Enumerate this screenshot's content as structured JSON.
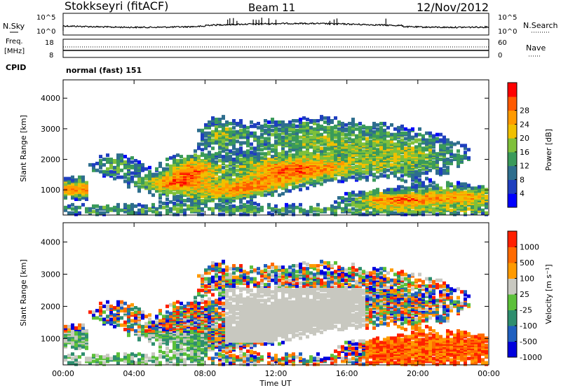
{
  "header": {
    "station": "Stokkseyri (fitACF)",
    "beam": "Beam 11",
    "date": "12/Nov/2012"
  },
  "left_labels": {
    "nsky": "N.Sky",
    "freq_line1": "Freq.",
    "freq_line2": "[MHz]",
    "cpid": "CPID"
  },
  "right_labels": {
    "nsearch": "N.Search",
    "nave": "Nave"
  },
  "noise_panel": {
    "left_ticks": [
      "10^5",
      "10^0"
    ],
    "right_ticks": [
      "10^5",
      "10^0"
    ]
  },
  "freq_panel": {
    "left_ticks": [
      "18",
      "8"
    ],
    "right_ticks": [
      "60",
      "0"
    ]
  },
  "cpid_text": "normal (fast) 151",
  "colors": {
    "power_scale": [
      "#0000ff",
      "#1f3fbf",
      "#2e6e8e",
      "#3a9a5a",
      "#7fc03a",
      "#f0c000",
      "#ff9a00",
      "#ff5a00",
      "#ff0000"
    ],
    "velocity_scale": [
      "#0000dd",
      "#1f5fbf",
      "#2e8e6e",
      "#5cc03a",
      "#c8c8c0",
      "#ff9a00",
      "#ff6a00",
      "#ff2000"
    ]
  },
  "chart_data": [
    {
      "type": "heatmap",
      "ylabel": "Slant Range [km]",
      "y_ticks": [
        1000,
        2000,
        3000,
        4000
      ],
      "ylim": [
        180,
        4600
      ],
      "colorbar_label": "Power [dB]",
      "colorbar_ticks": [
        4,
        8,
        12,
        16,
        20,
        24,
        28
      ],
      "colorbar_range": [
        0,
        32
      ]
    },
    {
      "type": "heatmap",
      "ylabel": "Slant Range [km]",
      "y_ticks": [
        1000,
        2000,
        3000,
        4000
      ],
      "ylim": [
        180,
        4600
      ],
      "colorbar_label": "Velocity [m s⁻¹]",
      "colorbar_ticks": [
        "1000",
        "500",
        "100",
        "25",
        "-25",
        "-100",
        "-500",
        "-1000"
      ]
    }
  ],
  "x_axis": {
    "xlabel": "Time UT",
    "ticks": [
      "00:00",
      "04:00",
      "08:00",
      "12:00",
      "16:00",
      "20:00",
      "00:00"
    ]
  }
}
